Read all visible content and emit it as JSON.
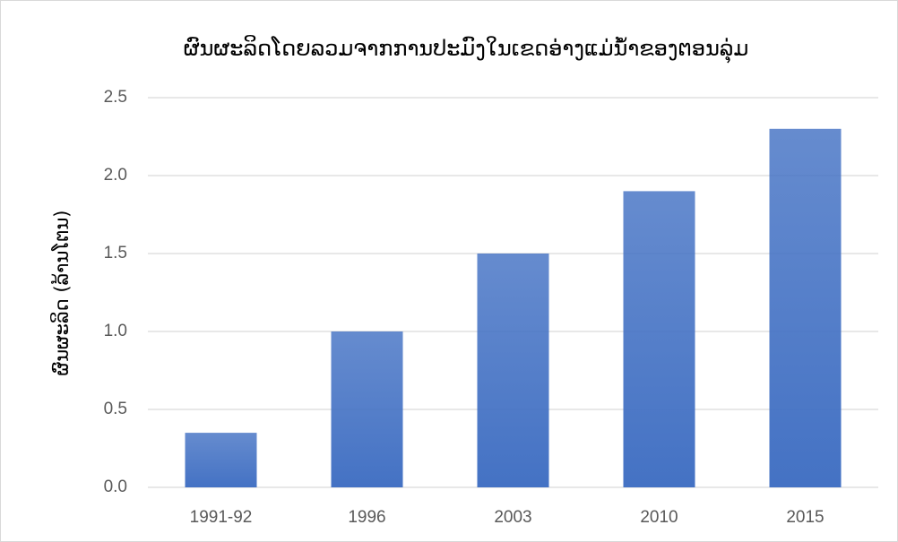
{
  "chart_data": {
    "type": "bar",
    "title": "ຜົນຜະລິດໂດຍລວມຈາກການປະມົງໃນເຂດອ່າງແມ່ນ້ຳຂອງຕອນລຸ່ມ",
    "y_label": "ຜົນຜະລິດ (ລ້ານໂຕນ)",
    "categories": [
      "1991-92",
      "1996",
      "2003",
      "2010",
      "2015"
    ],
    "values": [
      0.35,
      1.0,
      1.5,
      1.9,
      2.3
    ],
    "color": "#4472c4",
    "ylim": [
      0,
      2.5
    ],
    "yticks": [
      {
        "value": 0,
        "label": "0.0"
      },
      0.5,
      {
        "value": 1,
        "label": "1.0"
      },
      1.5,
      {
        "value": 2,
        "label": "2.0"
      },
      2.5
    ],
    "grid": true
  }
}
